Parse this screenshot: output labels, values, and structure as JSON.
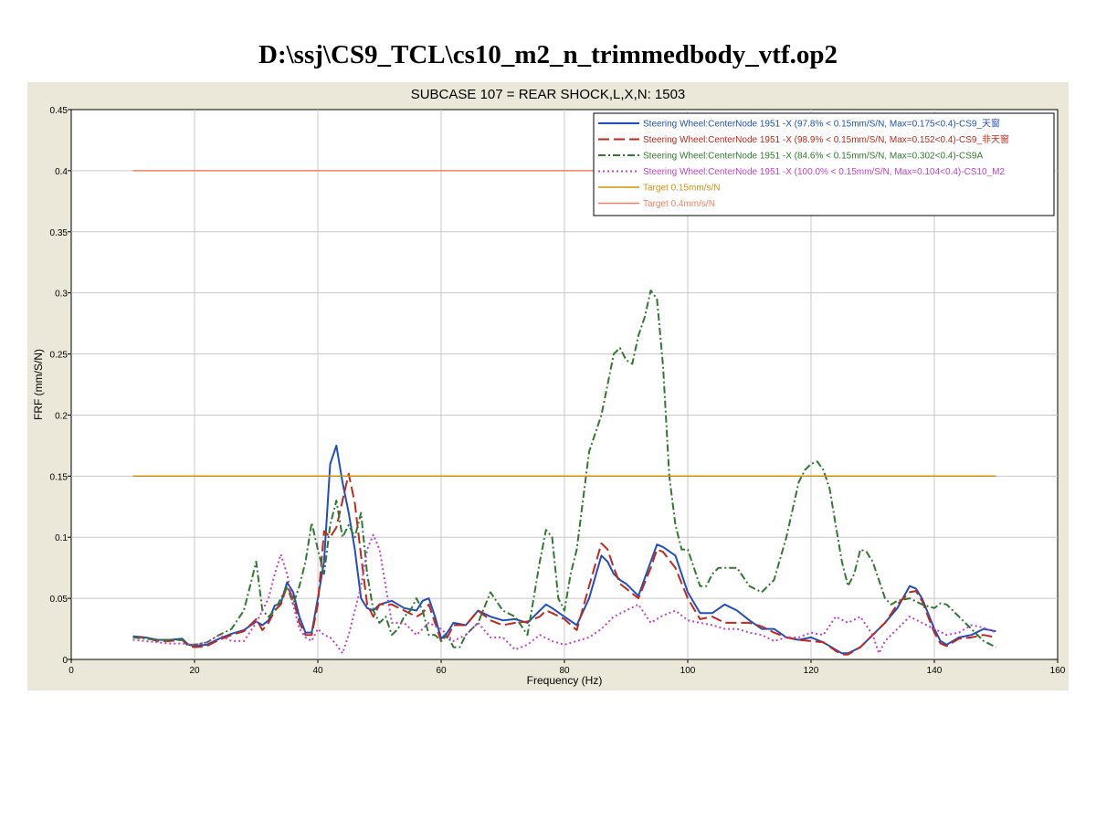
{
  "page_title": "D:\\ssj\\CS9_TCL\\cs10_m2_n_trimmedbody_vtf.op2",
  "chart_data": {
    "type": "line",
    "title": "SUBCASE 107 = REAR SHOCK,L,X,N: 1503",
    "xlabel": "Frequency (Hz)",
    "ylabel": "FRF (mm/S/N)",
    "xlim": [
      0,
      160
    ],
    "ylim": [
      0,
      0.45
    ],
    "x_ticks": [
      0,
      20,
      40,
      60,
      80,
      100,
      120,
      140,
      160
    ],
    "y_ticks": [
      0,
      0.05,
      0.1,
      0.15,
      0.2,
      0.25,
      0.3,
      0.35,
      0.4,
      0.45
    ],
    "x_tick_labels": [
      "0",
      "20",
      "40",
      "60",
      "80",
      "100",
      "120",
      "140",
      "160"
    ],
    "y_tick_labels": [
      "0",
      "0.05",
      "0.1",
      "0.15",
      "0.2",
      "0.25",
      "0.3",
      "0.35",
      "0.4",
      "0.45"
    ],
    "grid": true,
    "legend_position": "top-right",
    "series": [
      {
        "name": "Steering Wheel:CenterNode 1951 -X  (97.8% < 0.15mm/S/N, Max=0.175<0.4)-CS9_天窗",
        "color": "#1f4fbf",
        "dash": "solid",
        "x": [
          10,
          12,
          14,
          16,
          18,
          19,
          20,
          22,
          24,
          26,
          28,
          30,
          31,
          32,
          33,
          34,
          35,
          36,
          37,
          38,
          39,
          40,
          41,
          42,
          43,
          44,
          45,
          46,
          47,
          48,
          49,
          50,
          52,
          54,
          56,
          57,
          58,
          59,
          60,
          61,
          62,
          64,
          66,
          68,
          70,
          72,
          74,
          76,
          77,
          78,
          80,
          82,
          84,
          86,
          87,
          88,
          89,
          90,
          92,
          94,
          95,
          96,
          98,
          100,
          102,
          104,
          106,
          108,
          110,
          112,
          114,
          116,
          118,
          120,
          122,
          124,
          125,
          126,
          128,
          130,
          132,
          134,
          136,
          137,
          138,
          140,
          141,
          142,
          144,
          146,
          148,
          150
        ],
        "y": [
          0.019,
          0.018,
          0.016,
          0.016,
          0.017,
          0.012,
          0.011,
          0.012,
          0.017,
          0.021,
          0.024,
          0.031,
          0.028,
          0.032,
          0.044,
          0.046,
          0.063,
          0.055,
          0.035,
          0.022,
          0.022,
          0.05,
          0.08,
          0.16,
          0.175,
          0.145,
          0.12,
          0.09,
          0.05,
          0.042,
          0.04,
          0.045,
          0.048,
          0.042,
          0.04,
          0.048,
          0.05,
          0.035,
          0.017,
          0.022,
          0.03,
          0.028,
          0.04,
          0.035,
          0.032,
          0.033,
          0.03,
          0.04,
          0.045,
          0.042,
          0.035,
          0.028,
          0.05,
          0.085,
          0.08,
          0.07,
          0.065,
          0.062,
          0.052,
          0.08,
          0.094,
          0.092,
          0.085,
          0.055,
          0.038,
          0.038,
          0.045,
          0.04,
          0.032,
          0.025,
          0.025,
          0.018,
          0.016,
          0.018,
          0.014,
          0.008,
          0.005,
          0.005,
          0.01,
          0.02,
          0.03,
          0.042,
          0.06,
          0.058,
          0.05,
          0.025,
          0.015,
          0.012,
          0.018,
          0.02,
          0.025,
          0.023
        ]
      },
      {
        "name": "Steering Wheel:CenterNode 1951 -X  (98.9% < 0.15mm/S/N, Max=0.152<0.4)-CS9_非天窗",
        "color": "#c0281c",
        "dash": "longdash",
        "x": [
          10,
          12,
          14,
          16,
          18,
          19,
          20,
          22,
          24,
          26,
          28,
          30,
          31,
          32,
          33,
          34,
          35,
          36,
          37,
          38,
          39,
          40,
          41,
          42,
          43,
          44,
          45,
          46,
          47,
          48,
          49,
          50,
          52,
          54,
          56,
          57,
          58,
          59,
          60,
          61,
          62,
          64,
          66,
          68,
          70,
          72,
          74,
          76,
          77,
          78,
          80,
          82,
          84,
          86,
          87,
          88,
          89,
          90,
          92,
          94,
          95,
          96,
          98,
          100,
          102,
          104,
          106,
          108,
          110,
          112,
          114,
          116,
          118,
          120,
          122,
          124,
          125,
          126,
          128,
          130,
          132,
          134,
          136,
          137,
          138,
          140,
          141,
          142,
          144,
          146,
          148,
          150
        ],
        "y": [
          0.018,
          0.018,
          0.015,
          0.015,
          0.016,
          0.011,
          0.01,
          0.011,
          0.016,
          0.02,
          0.023,
          0.033,
          0.024,
          0.03,
          0.04,
          0.045,
          0.06,
          0.05,
          0.03,
          0.02,
          0.02,
          0.045,
          0.105,
          0.1,
          0.108,
          0.13,
          0.152,
          0.128,
          0.085,
          0.045,
          0.035,
          0.045,
          0.045,
          0.04,
          0.035,
          0.038,
          0.045,
          0.03,
          0.015,
          0.018,
          0.028,
          0.028,
          0.04,
          0.032,
          0.028,
          0.03,
          0.031,
          0.035,
          0.04,
          0.038,
          0.033,
          0.024,
          0.06,
          0.095,
          0.09,
          0.075,
          0.062,
          0.058,
          0.05,
          0.075,
          0.09,
          0.088,
          0.075,
          0.05,
          0.033,
          0.035,
          0.03,
          0.03,
          0.03,
          0.027,
          0.022,
          0.018,
          0.016,
          0.015,
          0.014,
          0.007,
          0.004,
          0.004,
          0.01,
          0.02,
          0.03,
          0.045,
          0.055,
          0.056,
          0.048,
          0.022,
          0.013,
          0.011,
          0.017,
          0.018,
          0.02,
          0.018
        ]
      },
      {
        "name": "Steering Wheel:CenterNode 1951 -X  (84.6% < 0.15mm/S/N, Max=0.302<0.4)-CS9A",
        "color": "#2f7a2f",
        "dash": "dashdot",
        "x": [
          10,
          12,
          14,
          16,
          18,
          19,
          20,
          22,
          24,
          26,
          28,
          29,
          30,
          31,
          32,
          33,
          34,
          35,
          36,
          37,
          38,
          39,
          40,
          41,
          42,
          43,
          44,
          45,
          46,
          47,
          48,
          49,
          50,
          51,
          52,
          53,
          54,
          55,
          56,
          57,
          58,
          59,
          60,
          61,
          62,
          63,
          64,
          66,
          68,
          70,
          72,
          74,
          75,
          76,
          77,
          78,
          79,
          80,
          81,
          82,
          84,
          86,
          88,
          89,
          90,
          91,
          92,
          93,
          94,
          95,
          96,
          97,
          98,
          99,
          100,
          101,
          102,
          103,
          104,
          105,
          106,
          108,
          110,
          112,
          114,
          116,
          118,
          119,
          120,
          121,
          122,
          123,
          124,
          125,
          126,
          127,
          128,
          129,
          130,
          131,
          132,
          133,
          134,
          136,
          138,
          140,
          141,
          142,
          144,
          146,
          148,
          150
        ],
        "y": [
          0.018,
          0.017,
          0.016,
          0.016,
          0.016,
          0.012,
          0.012,
          0.014,
          0.02,
          0.025,
          0.04,
          0.06,
          0.08,
          0.04,
          0.035,
          0.04,
          0.05,
          0.06,
          0.045,
          0.06,
          0.08,
          0.112,
          0.09,
          0.07,
          0.11,
          0.13,
          0.1,
          0.11,
          0.1,
          0.12,
          0.07,
          0.04,
          0.03,
          0.035,
          0.02,
          0.025,
          0.035,
          0.04,
          0.05,
          0.04,
          0.02,
          0.02,
          0.015,
          0.02,
          0.01,
          0.01,
          0.02,
          0.03,
          0.055,
          0.04,
          0.035,
          0.02,
          0.05,
          0.08,
          0.106,
          0.1,
          0.05,
          0.04,
          0.07,
          0.09,
          0.17,
          0.2,
          0.25,
          0.255,
          0.245,
          0.242,
          0.265,
          0.28,
          0.302,
          0.295,
          0.24,
          0.15,
          0.11,
          0.09,
          0.09,
          0.075,
          0.06,
          0.06,
          0.07,
          0.075,
          0.075,
          0.075,
          0.06,
          0.055,
          0.065,
          0.1,
          0.145,
          0.155,
          0.16,
          0.162,
          0.155,
          0.14,
          0.11,
          0.08,
          0.06,
          0.07,
          0.09,
          0.088,
          0.08,
          0.065,
          0.05,
          0.045,
          0.048,
          0.05,
          0.045,
          0.042,
          0.046,
          0.045,
          0.035,
          0.025,
          0.015,
          0.01
        ]
      },
      {
        "name": "Steering Wheel:CenterNode 1951 -X  (100.0% < 0.15mm/S/N, Max=0.104<0.4)-CS10_M2",
        "color": "#c040c8",
        "dash": "dotted",
        "x": [
          10,
          12,
          14,
          16,
          18,
          20,
          22,
          24,
          26,
          28,
          30,
          32,
          33,
          34,
          35,
          36,
          37,
          38,
          39,
          40,
          41,
          42,
          43,
          44,
          45,
          46,
          47,
          48,
          49,
          50,
          51,
          52,
          54,
          56,
          58,
          60,
          62,
          64,
          66,
          68,
          70,
          72,
          74,
          76,
          78,
          80,
          82,
          84,
          86,
          88,
          90,
          92,
          94,
          96,
          98,
          100,
          102,
          104,
          106,
          108,
          110,
          112,
          114,
          116,
          118,
          120,
          122,
          124,
          126,
          128,
          130,
          131,
          132,
          134,
          136,
          138,
          140,
          142,
          144,
          146,
          148,
          150
        ],
        "y": [
          0.016,
          0.015,
          0.014,
          0.013,
          0.013,
          0.012,
          0.014,
          0.02,
          0.015,
          0.015,
          0.03,
          0.05,
          0.07,
          0.086,
          0.07,
          0.045,
          0.025,
          0.018,
          0.015,
          0.025,
          0.02,
          0.018,
          0.012,
          0.005,
          0.02,
          0.04,
          0.06,
          0.09,
          0.102,
          0.09,
          0.06,
          0.03,
          0.03,
          0.02,
          0.03,
          0.025,
          0.015,
          0.02,
          0.03,
          0.018,
          0.018,
          0.008,
          0.012,
          0.02,
          0.015,
          0.012,
          0.015,
          0.018,
          0.025,
          0.035,
          0.04,
          0.045,
          0.03,
          0.036,
          0.04,
          0.032,
          0.03,
          0.028,
          0.025,
          0.025,
          0.022,
          0.02,
          0.015,
          0.018,
          0.018,
          0.022,
          0.02,
          0.035,
          0.03,
          0.035,
          0.02,
          0.005,
          0.015,
          0.025,
          0.035,
          0.03,
          0.025,
          0.02,
          0.022,
          0.028,
          0.026,
          0.022
        ]
      },
      {
        "name": "Target 0.15mm/s/N",
        "color": "#d4900a",
        "dash": "solid",
        "x": [
          10,
          150
        ],
        "y": [
          0.15,
          0.15
        ]
      },
      {
        "name": "Target 0.4mm/s/N",
        "color": "#f28060",
        "dash": "solid",
        "x": [
          10,
          150
        ],
        "y": [
          0.4,
          0.4
        ]
      }
    ]
  }
}
